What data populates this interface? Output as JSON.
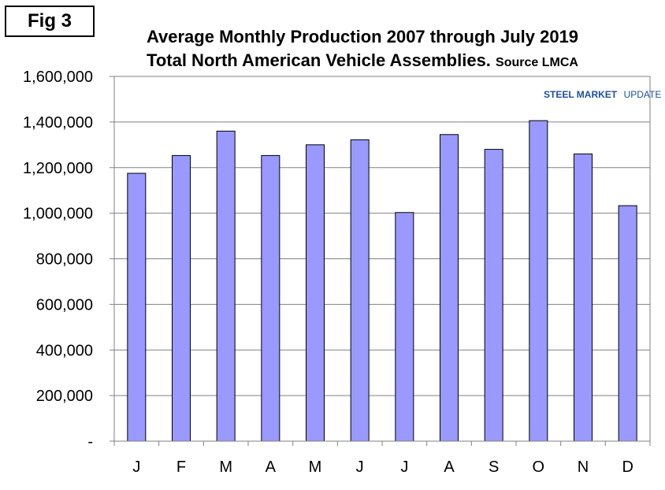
{
  "figure": {
    "label": "Fig 3"
  },
  "chart_data": {
    "type": "bar",
    "title": "Average Monthly Production 2007 through July 2019",
    "subtitle": "Total North American Vehicle Assemblies.",
    "source": "Source LMCA",
    "categories": [
      "J",
      "F",
      "M",
      "A",
      "M",
      "J",
      "J",
      "A",
      "S",
      "O",
      "N",
      "D"
    ],
    "values": [
      1175000,
      1253000,
      1360000,
      1253000,
      1300000,
      1322000,
      1003000,
      1345000,
      1280000,
      1406000,
      1260000,
      1033000
    ],
    "ylim": [
      0,
      1600000
    ],
    "yticks": [
      0,
      200000,
      400000,
      600000,
      800000,
      1000000,
      1200000,
      1400000,
      1600000
    ],
    "ytick_labels": [
      "-",
      "200,000",
      "400,000",
      "600,000",
      "800,000",
      "1,000,000",
      "1,200,000",
      "1,400,000",
      "1,600,000"
    ],
    "grid": true,
    "bar_color": "#9999ff",
    "xlabel": "",
    "ylabel": ""
  },
  "watermark": {
    "brand_bold": "STEEL MARKET",
    "brand_rest": "UPDATE"
  }
}
